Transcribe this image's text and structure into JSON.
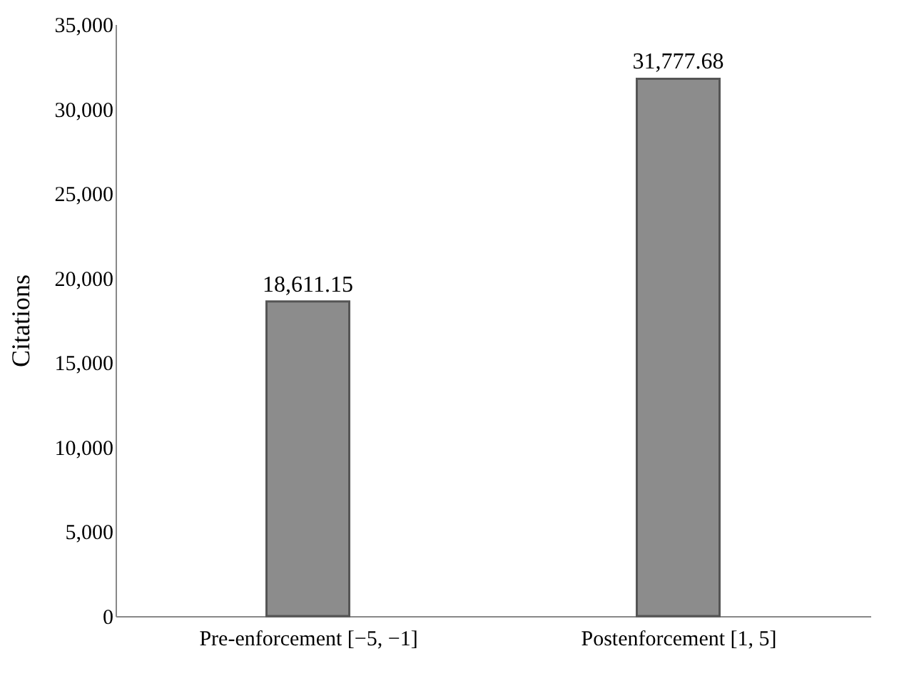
{
  "chart_data": {
    "type": "bar",
    "ylabel": "Citations",
    "categories": [
      "Pre-enforcement [−5, −1]",
      "Postenforcement [1, 5]"
    ],
    "values": [
      18611.15,
      31777.68
    ],
    "value_labels": [
      "18,611.15",
      "31,777.68"
    ],
    "color": "#8c8c8c",
    "ylim": [
      0,
      35000
    ],
    "yticks": [
      0,
      {
        "value": 5000,
        "label": "5,000"
      },
      {
        "value": 10000,
        "label": "10,000"
      },
      {
        "value": 15000,
        "label": "15,000"
      },
      {
        "value": 20000,
        "label": "20,000"
      },
      {
        "value": 25000,
        "label": "25,000"
      },
      {
        "value": 30000,
        "label": "30,000"
      },
      {
        "value": 35000,
        "label": "35,000"
      }
    ],
    "grid": false
  }
}
